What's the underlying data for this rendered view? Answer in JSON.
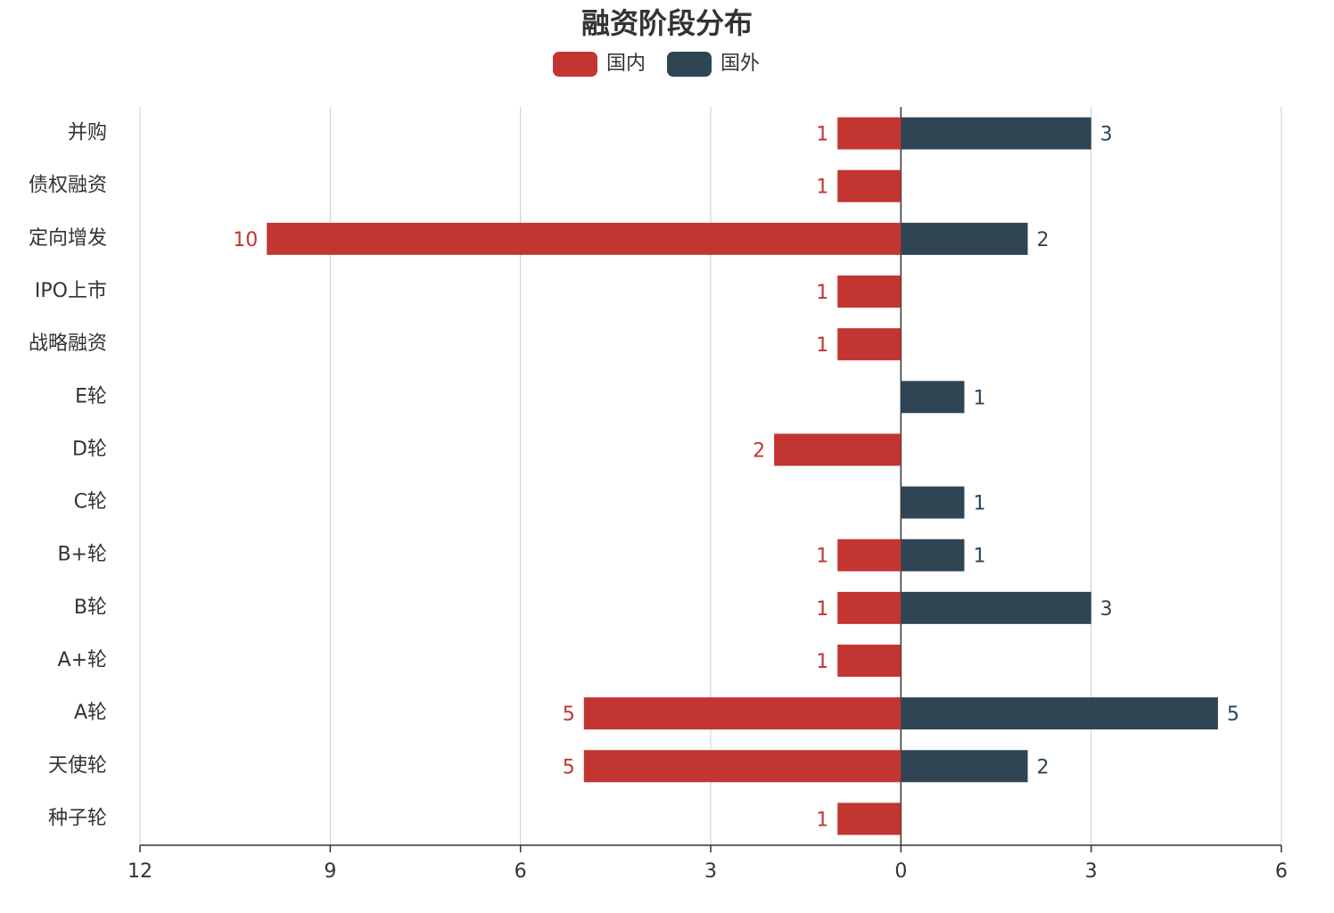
{
  "chart_data": {
    "type": "bar",
    "orientation": "horizontal",
    "title": "融资阶段分布",
    "categories": [
      "并购",
      "债权融资",
      "定向增发",
      "IPO上市",
      "战略融资",
      "E轮",
      "D轮",
      "C轮",
      "B+轮",
      "B轮",
      "A+轮",
      "A轮",
      "天使轮",
      "种子轮"
    ],
    "series": [
      {
        "name": "国内",
        "color": "#c23531",
        "values": [
          -1,
          -1,
          -10,
          -1,
          -1,
          null,
          -2,
          null,
          -1,
          -1,
          -1,
          -5,
          -5,
          -1
        ],
        "value_labels": [
          "1",
          "1",
          "10",
          "1",
          "1",
          null,
          "2",
          null,
          "1",
          "1",
          "1",
          "5",
          "5",
          "1"
        ]
      },
      {
        "name": "国外",
        "color": "#2f4554",
        "values": [
          3,
          null,
          2,
          null,
          null,
          1,
          null,
          1,
          1,
          3,
          null,
          5,
          2,
          null
        ]
      }
    ],
    "xlim": [
      -12,
      6
    ],
    "xticks": [
      {
        "value": -12,
        "label": "12"
      },
      {
        "value": -9,
        "label": "9"
      },
      {
        "value": -6,
        "label": "6"
      },
      {
        "value": -3,
        "label": "3"
      },
      0,
      3,
      6
    ],
    "grid": true,
    "legend": "top"
  }
}
